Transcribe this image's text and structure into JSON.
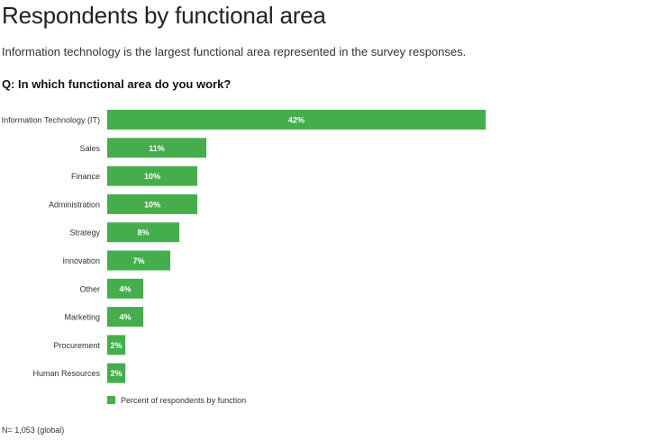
{
  "title": "Respondents by functional area",
  "subtitle": "Information technology is the largest functional area represented in the survey responses.",
  "question": "Q: In which functional area do you work?",
  "footnote": "N= 1,053 (global)",
  "colors": {
    "bar": "#45ae4c",
    "label_text": "#ffffff",
    "category_text": "#333333"
  },
  "chart_data": {
    "type": "bar",
    "orientation": "horizontal",
    "categories": [
      "Information Technology (IT)",
      "Sales",
      "Finance",
      "Administration",
      "Strategy",
      "Innovation",
      "Other",
      "Marketing",
      "Procurement",
      "Human Resources"
    ],
    "series": [
      {
        "name": "Percent of respondents by function",
        "values": [
          42,
          11,
          10,
          10,
          8,
          7,
          4,
          4,
          2,
          2
        ],
        "labels": [
          "42%",
          "11%",
          "10%",
          "10%",
          "8%",
          "7%",
          "4%",
          "4%",
          "2%",
          "2%"
        ]
      }
    ],
    "unit": "%",
    "legend": "bottom-left",
    "grid": false
  }
}
